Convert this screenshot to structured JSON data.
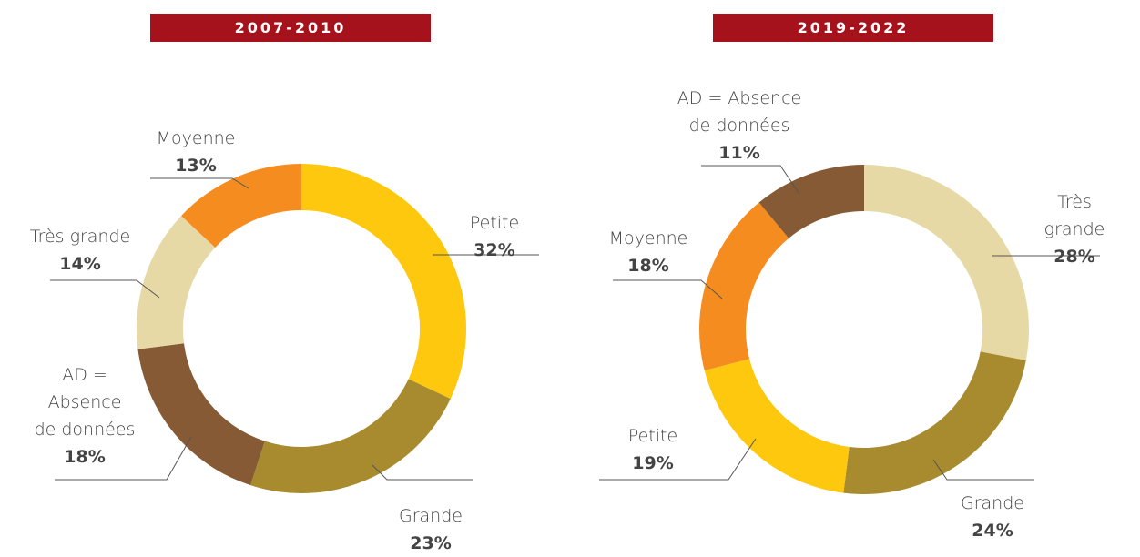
{
  "chart_data": [
    {
      "type": "donut",
      "title": "2007-2010",
      "categories": [
        "Petite",
        "Grande",
        "AD =\nAbsence\nde données",
        "Très grande",
        "Moyenne"
      ],
      "values": [
        32,
        23,
        18,
        14,
        13
      ],
      "value_labels": [
        "32%",
        "23%",
        "18%",
        "14%",
        "13%"
      ],
      "colors": [
        "#fec80e",
        "#a88b2e",
        "#855a35",
        "#e6d9a6",
        "#f58c20"
      ]
    },
    {
      "type": "donut",
      "title": "2019-2022",
      "categories": [
        "Très grande",
        "Grande",
        "Petite",
        "Moyenne",
        "AD = Absence\nde données"
      ],
      "values": [
        28,
        24,
        19,
        18,
        11
      ],
      "value_labels": [
        "28%",
        "24%",
        "19%",
        "18%",
        "11%"
      ],
      "colors": [
        "#e6d9a6",
        "#a88b2e",
        "#fec80e",
        "#f58c20",
        "#855a35"
      ]
    }
  ]
}
